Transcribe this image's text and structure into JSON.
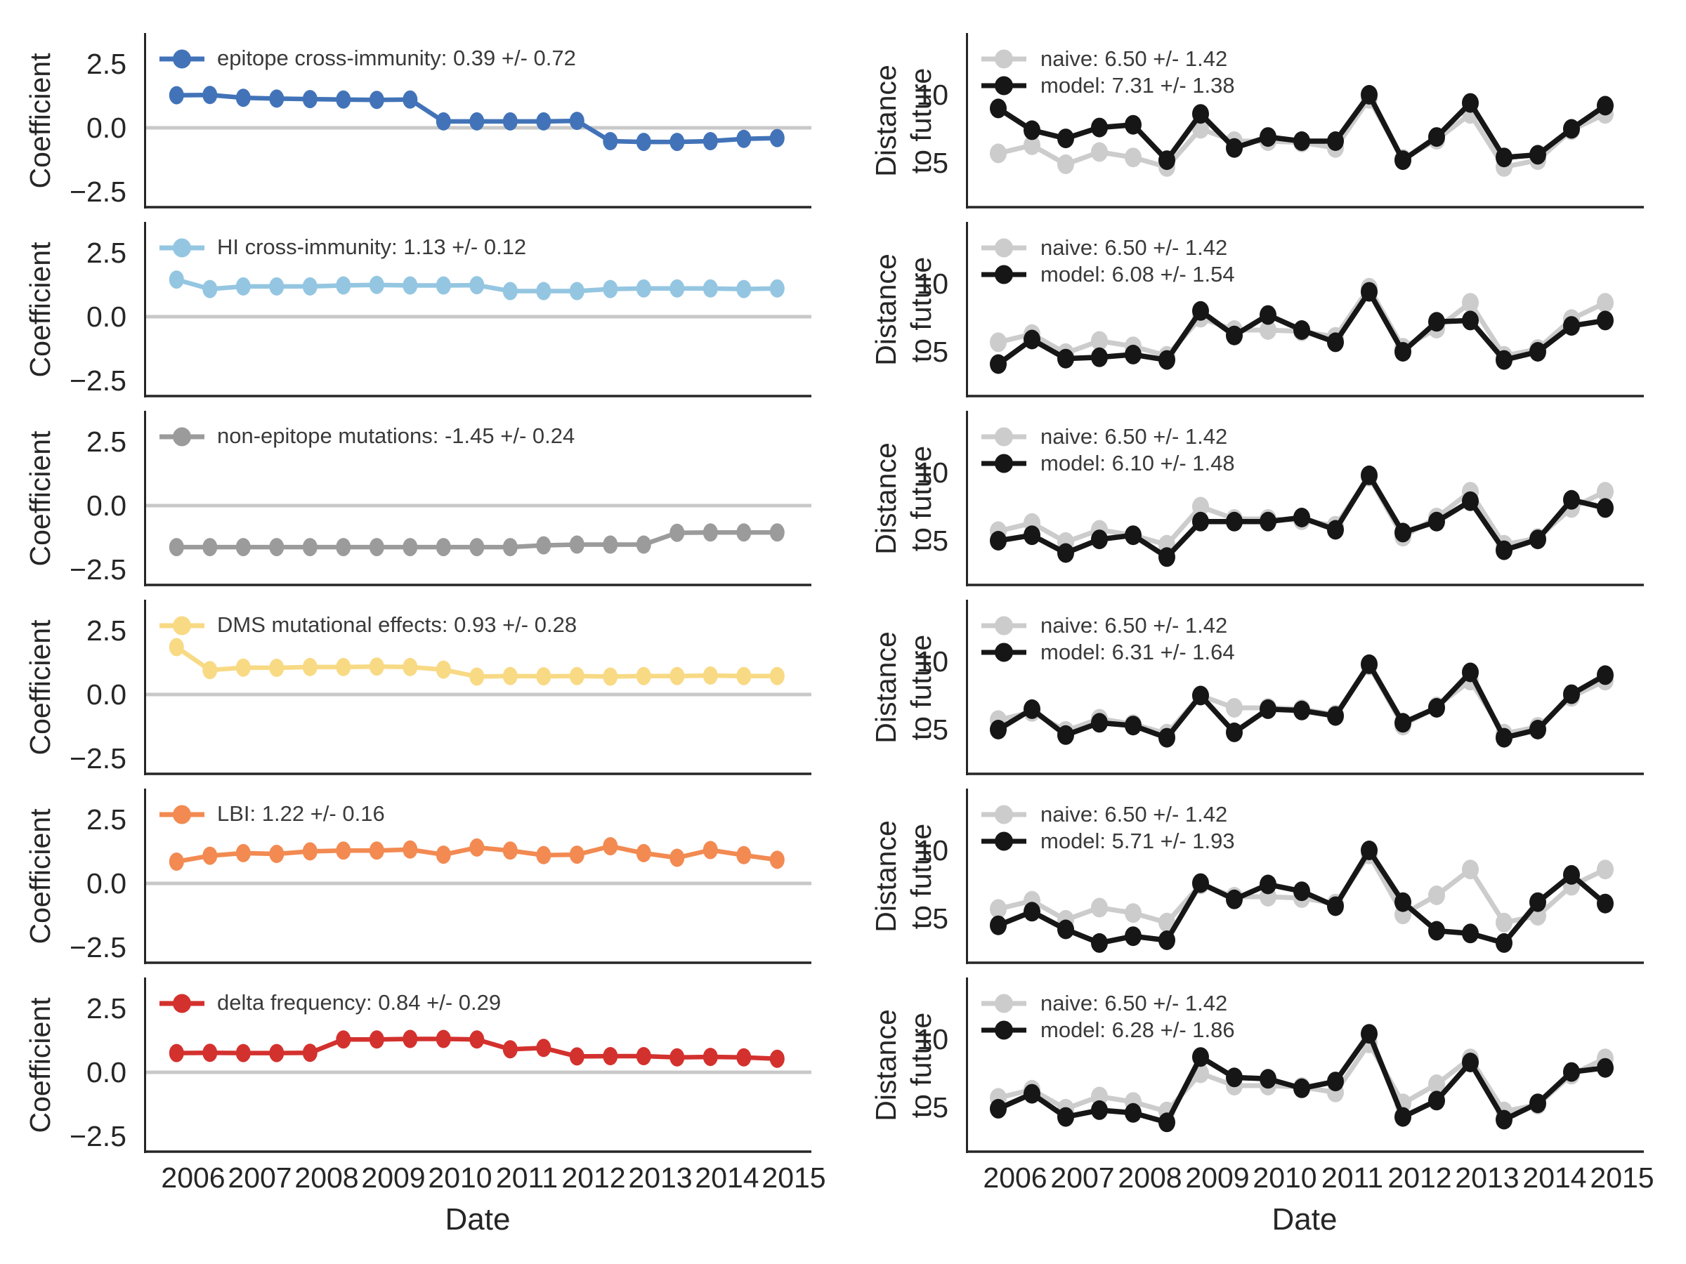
{
  "figure": {
    "xlabel": "Date",
    "x_tick_labels": [
      "2006",
      "2007",
      "2008",
      "2009",
      "2010",
      "2011",
      "2012",
      "2013",
      "2014",
      "2015"
    ],
    "left_ylabel": "Coefficient",
    "right_ylabel_lines": [
      "Distance",
      "to future"
    ],
    "left_ytick_labels": [
      "2.5",
      "0.0",
      "−2.5"
    ],
    "right_ytick_labels": [
      "10",
      "5"
    ],
    "colors": {
      "axis_spine": "#262626",
      "zero_line": "#c8c8c8",
      "legend_text": "#3a3a3a",
      "epitope_blue": "#4273b8",
      "hi_light_blue": "#94c6e1",
      "non_epitope_gray": "#9b9b9b",
      "dms_yellow": "#f8da85",
      "lbi_orange": "#f28a52",
      "delta_red": "#d3312e",
      "naive_gray": "#cccccc",
      "model_black": "#161616"
    }
  },
  "chart_data": [
    {
      "type": "line",
      "row": 0,
      "col": "left",
      "predictor": "epitope cross-immunity",
      "ylabel_lines": [
        "Coefficient"
      ],
      "xlabel": "Date",
      "ylim": [
        -3.05,
        3.05
      ],
      "yticks": [
        2.5,
        0.0,
        -2.5
      ],
      "yticklabels": [
        "2.5",
        "0.0",
        "−2.5"
      ],
      "zero_line": true,
      "legend_loc": "upper left",
      "grid": false,
      "x": [
        2005.75,
        2006.25,
        2006.75,
        2007.25,
        2007.75,
        2008.25,
        2008.75,
        2009.25,
        2009.75,
        2010.25,
        2010.75,
        2011.25,
        2011.75,
        2012.25,
        2012.75,
        2013.25,
        2013.75,
        2014.25,
        2014.75
      ],
      "series": [
        {
          "name": "epitope cross-immunity",
          "legend": "epitope cross-immunity: 0.39 +/- 0.72",
          "color": "#4273b8",
          "values": [
            1.27,
            1.28,
            1.17,
            1.14,
            1.12,
            1.1,
            1.09,
            1.1,
            0.25,
            0.25,
            0.25,
            0.25,
            0.27,
            -0.52,
            -0.55,
            -0.55,
            -0.52,
            -0.43,
            -0.4
          ]
        }
      ]
    },
    {
      "type": "line",
      "row": 0,
      "col": "right",
      "predictor": "epitope cross-immunity",
      "ylabel_lines": [
        "Distance",
        "to future"
      ],
      "xlabel": "Date",
      "ylim": [
        1.5,
        13.5
      ],
      "yticks": [
        10,
        5
      ],
      "yticklabels": [
        "10",
        "5"
      ],
      "zero_line": false,
      "legend_loc": "upper left",
      "grid": false,
      "x": [
        2005.75,
        2006.25,
        2006.75,
        2007.25,
        2007.75,
        2008.25,
        2008.75,
        2009.25,
        2009.75,
        2010.25,
        2010.75,
        2011.25,
        2011.75,
        2012.25,
        2012.75,
        2013.25,
        2013.75,
        2014.25,
        2014.75
      ],
      "series": [
        {
          "name": "naive",
          "legend": "naive: 6.50 +/- 1.42",
          "color": "#cccccc",
          "values": [
            5.7,
            6.3,
            4.9,
            5.8,
            5.4,
            4.7,
            7.5,
            6.6,
            6.6,
            6.5,
            6.1,
            9.7,
            5.3,
            6.7,
            8.6,
            4.7,
            5.2,
            7.4,
            8.6
          ]
        },
        {
          "name": "model",
          "legend": "model: 7.31 +/- 1.38",
          "color": "#161616",
          "values": [
            9.0,
            7.4,
            6.8,
            7.6,
            7.8,
            5.2,
            8.6,
            6.1,
            6.9,
            6.6,
            6.6,
            10.0,
            5.2,
            6.9,
            9.4,
            5.4,
            5.6,
            7.5,
            9.2
          ]
        }
      ]
    },
    {
      "type": "line",
      "row": 1,
      "col": "left",
      "predictor": "HI cross-immunity",
      "ylabel_lines": [
        "Coefficient"
      ],
      "xlabel": "Date",
      "ylim": [
        -3.05,
        3.05
      ],
      "yticks": [
        2.5,
        0.0,
        -2.5
      ],
      "yticklabels": [
        "2.5",
        "0.0",
        "−2.5"
      ],
      "zero_line": true,
      "legend_loc": "upper left",
      "grid": false,
      "x": [
        2005.75,
        2006.25,
        2006.75,
        2007.25,
        2007.75,
        2008.25,
        2008.75,
        2009.25,
        2009.75,
        2010.25,
        2010.75,
        2011.25,
        2011.75,
        2012.25,
        2012.75,
        2013.25,
        2013.75,
        2014.25,
        2014.75
      ],
      "series": [
        {
          "name": "HI cross-immunity",
          "legend": "HI cross-immunity: 1.13 +/- 0.12",
          "color": "#94c6e1",
          "values": [
            1.45,
            1.08,
            1.18,
            1.18,
            1.18,
            1.22,
            1.24,
            1.22,
            1.22,
            1.23,
            1.0,
            1.0,
            1.0,
            1.08,
            1.1,
            1.1,
            1.1,
            1.08,
            1.1
          ]
        }
      ]
    },
    {
      "type": "line",
      "row": 1,
      "col": "right",
      "predictor": "HI cross-immunity",
      "ylabel_lines": [
        "Distance",
        "to future"
      ],
      "xlabel": "Date",
      "ylim": [
        1.5,
        13.5
      ],
      "yticks": [
        10,
        5
      ],
      "yticklabels": [
        "10",
        "5"
      ],
      "zero_line": false,
      "legend_loc": "upper left",
      "grid": false,
      "x": [
        2005.75,
        2006.25,
        2006.75,
        2007.25,
        2007.75,
        2008.25,
        2008.75,
        2009.25,
        2009.75,
        2010.25,
        2010.75,
        2011.25,
        2011.75,
        2012.25,
        2012.75,
        2013.25,
        2013.75,
        2014.25,
        2014.75
      ],
      "series": [
        {
          "name": "naive",
          "legend": "naive: 6.50 +/- 1.42",
          "color": "#cccccc",
          "values": [
            5.7,
            6.3,
            4.9,
            5.8,
            5.4,
            4.7,
            7.5,
            6.6,
            6.6,
            6.5,
            6.1,
            9.7,
            5.3,
            6.7,
            8.6,
            4.7,
            5.2,
            7.4,
            8.6
          ]
        },
        {
          "name": "model",
          "legend": "model: 6.08 +/- 1.54",
          "color": "#161616",
          "values": [
            4.1,
            5.9,
            4.5,
            4.6,
            4.8,
            4.4,
            8.0,
            6.2,
            7.7,
            6.6,
            5.7,
            9.4,
            5.0,
            7.2,
            7.3,
            4.4,
            5.0,
            6.9,
            7.3
          ]
        }
      ]
    },
    {
      "type": "line",
      "row": 2,
      "col": "left",
      "predictor": "non-epitope mutations",
      "ylabel_lines": [
        "Coefficient"
      ],
      "xlabel": "Date",
      "ylim": [
        -3.05,
        3.05
      ],
      "yticks": [
        2.5,
        0.0,
        -2.5
      ],
      "yticklabels": [
        "2.5",
        "0.0",
        "−2.5"
      ],
      "zero_line": true,
      "legend_loc": "upper left",
      "grid": false,
      "x": [
        2005.75,
        2006.25,
        2006.75,
        2007.25,
        2007.75,
        2008.25,
        2008.75,
        2009.25,
        2009.75,
        2010.25,
        2010.75,
        2011.25,
        2011.75,
        2012.25,
        2012.75,
        2013.25,
        2013.75,
        2014.25,
        2014.75
      ],
      "series": [
        {
          "name": "non-epitope mutations",
          "legend": "non-epitope mutations: -1.45 +/- 0.24",
          "color": "#9b9b9b",
          "values": [
            -1.62,
            -1.62,
            -1.62,
            -1.62,
            -1.62,
            -1.62,
            -1.62,
            -1.62,
            -1.62,
            -1.62,
            -1.62,
            -1.55,
            -1.52,
            -1.52,
            -1.52,
            -1.06,
            -1.05,
            -1.05,
            -1.05
          ]
        }
      ]
    },
    {
      "type": "line",
      "row": 2,
      "col": "right",
      "predictor": "non-epitope mutations",
      "ylabel_lines": [
        "Distance",
        "to future"
      ],
      "xlabel": "Date",
      "ylim": [
        1.5,
        13.5
      ],
      "yticks": [
        10,
        5
      ],
      "yticklabels": [
        "10",
        "5"
      ],
      "zero_line": false,
      "legend_loc": "upper left",
      "grid": false,
      "x": [
        2005.75,
        2006.25,
        2006.75,
        2007.25,
        2007.75,
        2008.25,
        2008.75,
        2009.25,
        2009.75,
        2010.25,
        2010.75,
        2011.25,
        2011.75,
        2012.25,
        2012.75,
        2013.25,
        2013.75,
        2014.25,
        2014.75
      ],
      "series": [
        {
          "name": "naive",
          "legend": "naive: 6.50 +/- 1.42",
          "color": "#cccccc",
          "values": [
            5.7,
            6.3,
            4.9,
            5.8,
            5.4,
            4.7,
            7.5,
            6.6,
            6.6,
            6.5,
            6.1,
            9.7,
            5.3,
            6.7,
            8.6,
            4.7,
            5.2,
            7.4,
            8.6
          ]
        },
        {
          "name": "model",
          "legend": "model: 6.10 +/- 1.48",
          "color": "#161616",
          "values": [
            5.0,
            5.4,
            4.1,
            5.1,
            5.4,
            3.8,
            6.4,
            6.4,
            6.4,
            6.7,
            5.8,
            9.8,
            5.6,
            6.4,
            7.9,
            4.3,
            5.1,
            8.0,
            7.4
          ]
        }
      ]
    },
    {
      "type": "line",
      "row": 3,
      "col": "left",
      "predictor": "DMS mutational effects",
      "ylabel_lines": [
        "Coefficient"
      ],
      "xlabel": "Date",
      "ylim": [
        -3.05,
        3.05
      ],
      "yticks": [
        2.5,
        0.0,
        -2.5
      ],
      "yticklabels": [
        "2.5",
        "0.0",
        "−2.5"
      ],
      "zero_line": true,
      "legend_loc": "upper left",
      "grid": false,
      "x": [
        2005.75,
        2006.25,
        2006.75,
        2007.25,
        2007.75,
        2008.25,
        2008.75,
        2009.25,
        2009.75,
        2010.25,
        2010.75,
        2011.25,
        2011.75,
        2012.25,
        2012.75,
        2013.25,
        2013.75,
        2014.25,
        2014.75
      ],
      "series": [
        {
          "name": "DMS mutational effects",
          "legend": "DMS mutational effects: 0.93 +/- 0.28",
          "color": "#f8da85",
          "values": [
            1.85,
            0.95,
            1.05,
            1.04,
            1.07,
            1.07,
            1.09,
            1.07,
            0.97,
            0.7,
            0.72,
            0.71,
            0.72,
            0.7,
            0.72,
            0.72,
            0.74,
            0.72,
            0.72
          ]
        }
      ]
    },
    {
      "type": "line",
      "row": 3,
      "col": "right",
      "predictor": "DMS mutational effects",
      "ylabel_lines": [
        "Distance",
        "to future"
      ],
      "xlabel": "Date",
      "ylim": [
        1.5,
        13.5
      ],
      "yticks": [
        10,
        5
      ],
      "yticklabels": [
        "10",
        "5"
      ],
      "zero_line": false,
      "legend_loc": "upper left",
      "grid": false,
      "x": [
        2005.75,
        2006.25,
        2006.75,
        2007.25,
        2007.75,
        2008.25,
        2008.75,
        2009.25,
        2009.75,
        2010.25,
        2010.75,
        2011.25,
        2011.75,
        2012.25,
        2012.75,
        2013.25,
        2013.75,
        2014.25,
        2014.75
      ],
      "series": [
        {
          "name": "naive",
          "legend": "naive: 6.50 +/- 1.42",
          "color": "#cccccc",
          "values": [
            5.7,
            6.3,
            4.9,
            5.8,
            5.4,
            4.7,
            7.5,
            6.6,
            6.6,
            6.5,
            6.1,
            9.7,
            5.3,
            6.7,
            8.6,
            4.7,
            5.2,
            7.4,
            8.6
          ]
        },
        {
          "name": "model",
          "legend": "model: 6.31 +/- 1.64",
          "color": "#161616",
          "values": [
            5.0,
            6.5,
            4.6,
            5.5,
            5.3,
            4.4,
            7.5,
            4.8,
            6.5,
            6.4,
            6.0,
            9.8,
            5.5,
            6.6,
            9.2,
            4.4,
            5.0,
            7.6,
            9.0
          ]
        }
      ]
    },
    {
      "type": "line",
      "row": 4,
      "col": "left",
      "predictor": "LBI",
      "ylabel_lines": [
        "Coefficient"
      ],
      "xlabel": "Date",
      "ylim": [
        -3.05,
        3.05
      ],
      "yticks": [
        2.5,
        0.0,
        -2.5
      ],
      "yticklabels": [
        "2.5",
        "0.0",
        "−2.5"
      ],
      "zero_line": true,
      "legend_loc": "upper left",
      "grid": false,
      "x": [
        2005.75,
        2006.25,
        2006.75,
        2007.25,
        2007.75,
        2008.25,
        2008.75,
        2009.25,
        2009.75,
        2010.25,
        2010.75,
        2011.25,
        2011.75,
        2012.25,
        2012.75,
        2013.25,
        2013.75,
        2014.25,
        2014.75
      ],
      "series": [
        {
          "name": "LBI",
          "legend": "LBI: 1.22 +/- 0.16",
          "color": "#f28a52",
          "values": [
            0.85,
            1.08,
            1.18,
            1.15,
            1.25,
            1.28,
            1.28,
            1.32,
            1.12,
            1.4,
            1.28,
            1.1,
            1.12,
            1.45,
            1.18,
            1.0,
            1.3,
            1.1,
            0.92
          ]
        }
      ]
    },
    {
      "type": "line",
      "row": 4,
      "col": "right",
      "predictor": "LBI",
      "ylabel_lines": [
        "Distance",
        "to future"
      ],
      "xlabel": "Date",
      "ylim": [
        1.5,
        13.5
      ],
      "yticks": [
        10,
        5
      ],
      "yticklabels": [
        "10",
        "5"
      ],
      "zero_line": false,
      "legend_loc": "upper left",
      "grid": false,
      "x": [
        2005.75,
        2006.25,
        2006.75,
        2007.25,
        2007.75,
        2008.25,
        2008.75,
        2009.25,
        2009.75,
        2010.25,
        2010.75,
        2011.25,
        2011.75,
        2012.25,
        2012.75,
        2013.25,
        2013.75,
        2014.25,
        2014.75
      ],
      "series": [
        {
          "name": "naive",
          "legend": "naive: 6.50 +/- 1.42",
          "color": "#cccccc",
          "values": [
            5.7,
            6.3,
            4.9,
            5.8,
            5.4,
            4.7,
            7.5,
            6.6,
            6.6,
            6.5,
            6.1,
            9.7,
            5.3,
            6.7,
            8.6,
            4.7,
            5.2,
            7.4,
            8.6
          ]
        },
        {
          "name": "model",
          "legend": "model: 5.71 +/- 1.93",
          "color": "#161616",
          "values": [
            4.5,
            5.5,
            4.2,
            3.2,
            3.7,
            3.4,
            7.6,
            6.4,
            7.5,
            7.0,
            5.9,
            10.0,
            6.2,
            4.1,
            3.9,
            3.2,
            6.2,
            8.2,
            6.1
          ]
        }
      ]
    },
    {
      "type": "line",
      "row": 5,
      "col": "left",
      "predictor": "delta frequency",
      "ylabel_lines": [
        "Coefficient"
      ],
      "xlabel": "Date",
      "ylim": [
        -3.05,
        3.05
      ],
      "yticks": [
        2.5,
        0.0,
        -2.5
      ],
      "yticklabels": [
        "2.5",
        "0.0",
        "−2.5"
      ],
      "zero_line": true,
      "legend_loc": "upper left",
      "grid": false,
      "x": [
        2005.75,
        2006.25,
        2006.75,
        2007.25,
        2007.75,
        2008.25,
        2008.75,
        2009.25,
        2009.75,
        2010.25,
        2010.75,
        2011.25,
        2011.75,
        2012.25,
        2012.75,
        2013.25,
        2013.75,
        2014.25,
        2014.75
      ],
      "series": [
        {
          "name": "delta frequency",
          "legend": "delta frequency: 0.84 +/- 0.29",
          "color": "#d3312e",
          "values": [
            0.75,
            0.76,
            0.75,
            0.75,
            0.76,
            1.28,
            1.28,
            1.3,
            1.3,
            1.28,
            0.9,
            0.95,
            0.62,
            0.63,
            0.63,
            0.58,
            0.6,
            0.58,
            0.53
          ]
        }
      ]
    },
    {
      "type": "line",
      "row": 5,
      "col": "right",
      "predictor": "delta frequency",
      "ylabel_lines": [
        "Distance",
        "to future"
      ],
      "xlabel": "Date",
      "ylim": [
        1.5,
        13.5
      ],
      "yticks": [
        10,
        5
      ],
      "yticklabels": [
        "10",
        "5"
      ],
      "zero_line": false,
      "legend_loc": "upper left",
      "grid": false,
      "x": [
        2005.75,
        2006.25,
        2006.75,
        2007.25,
        2007.75,
        2008.25,
        2008.75,
        2009.25,
        2009.75,
        2010.25,
        2010.75,
        2011.25,
        2011.75,
        2012.25,
        2012.75,
        2013.25,
        2013.75,
        2014.25,
        2014.75
      ],
      "series": [
        {
          "name": "naive",
          "legend": "naive: 6.50 +/- 1.42",
          "color": "#cccccc",
          "values": [
            5.7,
            6.3,
            4.9,
            5.8,
            5.4,
            4.7,
            7.5,
            6.6,
            6.6,
            6.5,
            6.1,
            9.7,
            5.3,
            6.7,
            8.6,
            4.7,
            5.2,
            7.4,
            8.6
          ]
        },
        {
          "name": "model",
          "legend": "model: 6.28 +/- 1.86",
          "color": "#161616",
          "values": [
            4.9,
            6.0,
            4.3,
            4.8,
            4.6,
            3.9,
            8.7,
            7.2,
            7.1,
            6.4,
            6.9,
            10.4,
            4.3,
            5.5,
            8.3,
            4.1,
            5.3,
            7.6,
            7.9
          ]
        }
      ]
    }
  ]
}
